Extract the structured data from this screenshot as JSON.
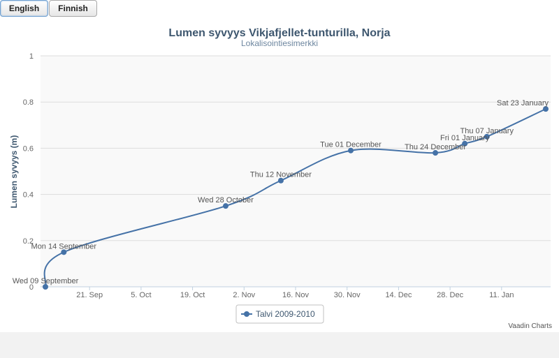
{
  "language_buttons": {
    "english_label": "English",
    "finnish_label": "Finnish"
  },
  "credits": "Vaadin Charts",
  "chart_data": {
    "type": "line",
    "title": "Lumen syvyys Vikjafjellet-tunturilla, Norja",
    "subtitle": "Lokalisointiesimerkki",
    "xlabel": "",
    "ylabel": "Lumen syvyys (m)",
    "ylim": [
      0,
      1
    ],
    "yticks": [
      "0",
      "0.2",
      "0.4",
      "0.6",
      "0.8",
      "1"
    ],
    "xlim": [
      "2009-09-09",
      "2010-01-23"
    ],
    "xticks": [
      {
        "date": "2009-09-21",
        "label": "21. Sep"
      },
      {
        "date": "2009-10-05",
        "label": "5. Oct"
      },
      {
        "date": "2009-10-19",
        "label": "19. Oct"
      },
      {
        "date": "2009-11-02",
        "label": "2. Nov"
      },
      {
        "date": "2009-11-16",
        "label": "16. Nov"
      },
      {
        "date": "2009-11-30",
        "label": "30. Nov"
      },
      {
        "date": "2009-12-14",
        "label": "14. Dec"
      },
      {
        "date": "2009-12-28",
        "label": "28. Dec"
      },
      {
        "date": "2010-01-11",
        "label": "11. Jan"
      }
    ],
    "grid": "horizontal",
    "legend_position": "bottom-center",
    "series": [
      {
        "name": "Talvi 2009-2010",
        "color": "#4572a7",
        "points": [
          {
            "date": "2009-09-09",
            "y": 0.0,
            "label": "Wed 09 September"
          },
          {
            "date": "2009-09-14",
            "y": 0.15,
            "label": "Mon 14 September"
          },
          {
            "date": "2009-10-28",
            "y": 0.35,
            "label": "Wed 28 October"
          },
          {
            "date": "2009-11-12",
            "y": 0.46,
            "label": "Thu 12 November"
          },
          {
            "date": "2009-12-01",
            "y": 0.59,
            "label": "Tue 01 December"
          },
          {
            "date": "2009-12-24",
            "y": 0.58,
            "label": "Thu 24 December"
          },
          {
            "date": "2010-01-01",
            "y": 0.62,
            "label": "Fri 01 January"
          },
          {
            "date": "2010-01-07",
            "y": 0.65,
            "label": "Thu 07 January"
          },
          {
            "date": "2010-01-23",
            "y": 0.77,
            "label": "Sat 23 January"
          }
        ]
      }
    ]
  }
}
